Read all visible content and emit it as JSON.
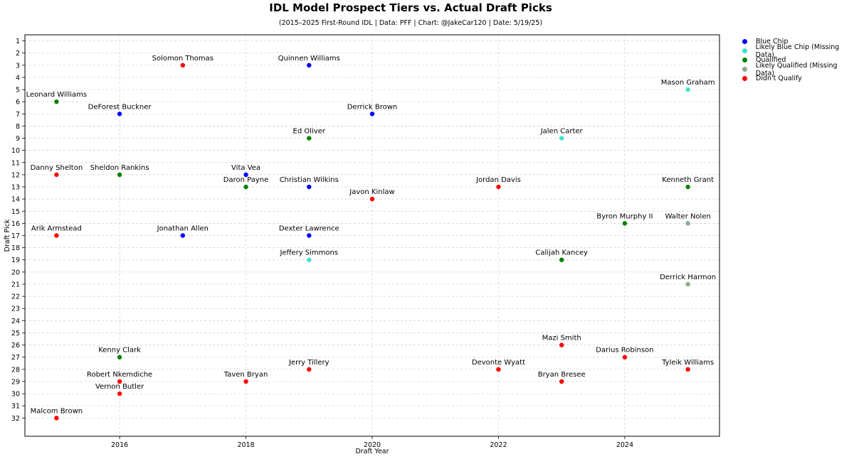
{
  "chart_data": {
    "type": "scatter",
    "title": "IDL Model Prospect Tiers vs. Actual Draft Picks",
    "subtitle": "(2015–2025 First-Round IDL | Data: PFF | Chart: @JakeCar120 | Date: 5/19/25)",
    "xlabel": "Draft Year",
    "ylabel": "Draft Pick",
    "xlim": [
      2014.5,
      2025.5
    ],
    "ylim": [
      33.5,
      0.5
    ],
    "y_inverted": true,
    "x_ticks": [
      2016,
      2018,
      2020,
      2022,
      2024
    ],
    "y_ticks": [
      1,
      2,
      3,
      4,
      5,
      6,
      7,
      8,
      9,
      10,
      11,
      12,
      13,
      14,
      15,
      16,
      17,
      18,
      19,
      20,
      21,
      22,
      23,
      24,
      25,
      26,
      27,
      28,
      29,
      30,
      31,
      32
    ],
    "grid": true,
    "legend_position": "outside-right",
    "series": [
      {
        "name": "Blue Chip",
        "color": "#0000ff",
        "points": [
          {
            "label": "DeForest Buckner",
            "x": 2016,
            "y": 7
          },
          {
            "label": "Jonathan Allen",
            "x": 2017,
            "y": 17
          },
          {
            "label": "Vita Vea",
            "x": 2018,
            "y": 12
          },
          {
            "label": "Quinnen Williams",
            "x": 2019,
            "y": 3
          },
          {
            "label": "Christian Wilkins",
            "x": 2019,
            "y": 13
          },
          {
            "label": "Dexter Lawrence",
            "x": 2019,
            "y": 17
          },
          {
            "label": "Derrick Brown",
            "x": 2020,
            "y": 7
          }
        ]
      },
      {
        "name": "Likely Blue Chip (Missing Data)",
        "color": "#40e0d0",
        "points": [
          {
            "label": "Jeffery Simmons",
            "x": 2019,
            "y": 19
          },
          {
            "label": "Jalen Carter",
            "x": 2023,
            "y": 9
          },
          {
            "label": "Mason Graham",
            "x": 2025,
            "y": 5
          }
        ]
      },
      {
        "name": "Qualified",
        "color": "#008000",
        "points": [
          {
            "label": "Leonard Williams",
            "x": 2015,
            "y": 6
          },
          {
            "label": "Sheldon Rankins",
            "x": 2016,
            "y": 12
          },
          {
            "label": "Kenny Clark",
            "x": 2016,
            "y": 27
          },
          {
            "label": "Daron Payne",
            "x": 2018,
            "y": 13
          },
          {
            "label": "Ed Oliver",
            "x": 2019,
            "y": 9
          },
          {
            "label": "Calijah Kancey",
            "x": 2023,
            "y": 19
          },
          {
            "label": "Byron Murphy II",
            "x": 2024,
            "y": 16
          },
          {
            "label": "Kenneth Grant",
            "x": 2025,
            "y": 13
          }
        ]
      },
      {
        "name": "Likely Qualified (Missing Data)",
        "color": "#8fa98f",
        "points": [
          {
            "label": "Walter Nolen",
            "x": 2025,
            "y": 16
          },
          {
            "label": "Derrick Harmon",
            "x": 2025,
            "y": 21
          }
        ]
      },
      {
        "name": "Didn't Qualify",
        "color": "#ff0000",
        "points": [
          {
            "label": "Danny Shelton",
            "x": 2015,
            "y": 12
          },
          {
            "label": "Arik Armstead",
            "x": 2015,
            "y": 17
          },
          {
            "label": "Malcom Brown",
            "x": 2015,
            "y": 32
          },
          {
            "label": "Robert Nkemdiche",
            "x": 2016,
            "y": 29
          },
          {
            "label": "Vernon Butler",
            "x": 2016,
            "y": 30
          },
          {
            "label": "Solomon Thomas",
            "x": 2017,
            "y": 3
          },
          {
            "label": "Taven Bryan",
            "x": 2018,
            "y": 29
          },
          {
            "label": "Jerry Tillery",
            "x": 2019,
            "y": 28
          },
          {
            "label": "Javon Kinlaw",
            "x": 2020,
            "y": 14
          },
          {
            "label": "Jordan Davis",
            "x": 2022,
            "y": 13
          },
          {
            "label": "Devonte Wyatt",
            "x": 2022,
            "y": 28
          },
          {
            "label": "Mazi Smith",
            "x": 2023,
            "y": 26
          },
          {
            "label": "Bryan Bresee",
            "x": 2023,
            "y": 29
          },
          {
            "label": "Darius Robinson",
            "x": 2024,
            "y": 27
          },
          {
            "label": "Tyleik Williams",
            "x": 2025,
            "y": 28
          }
        ]
      }
    ]
  }
}
